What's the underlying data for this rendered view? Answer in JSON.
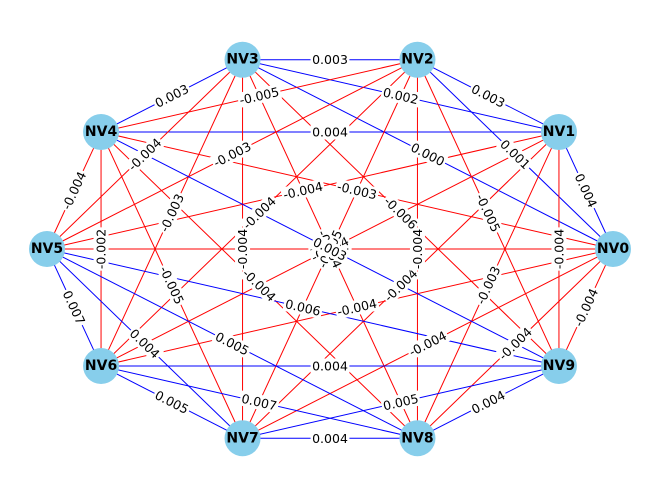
{
  "colors": {
    "node": "#87CEEB",
    "positive_edge": "#0000FF",
    "negative_edge": "#FF0000",
    "label_bg": "#FFFFFF"
  },
  "nodes": [
    "NV0",
    "NV1",
    "NV2",
    "NV3",
    "NV4",
    "NV5",
    "NV6",
    "NV7",
    "NV8",
    "NV9"
  ],
  "edges": [
    {
      "source": "NV0",
      "target": "NV1",
      "weight": 0.004,
      "label": "0.004"
    },
    {
      "source": "NV0",
      "target": "NV2",
      "weight": 0.001,
      "label": "0.001"
    },
    {
      "source": "NV0",
      "target": "NV3",
      "weight": 0.0,
      "label": "0.000"
    },
    {
      "source": "NV0",
      "target": "NV4",
      "weight": -0.003,
      "label": "-0.003"
    },
    {
      "source": "NV0",
      "target": "NV5",
      "weight": -0.004,
      "label": "-0.004"
    },
    {
      "source": "NV0",
      "target": "NV6",
      "weight": -0.004,
      "label": "-0.004"
    },
    {
      "source": "NV0",
      "target": "NV7",
      "weight": -0.004,
      "label": "-0.004"
    },
    {
      "source": "NV0",
      "target": "NV8",
      "weight": -0.004,
      "label": "-0.004"
    },
    {
      "source": "NV0",
      "target": "NV9",
      "weight": -0.004,
      "label": "-0.004"
    },
    {
      "source": "NV1",
      "target": "NV2",
      "weight": 0.003,
      "label": "0.003"
    },
    {
      "source": "NV1",
      "target": "NV3",
      "weight": 0.002,
      "label": "0.002"
    },
    {
      "source": "NV1",
      "target": "NV4",
      "weight": 0.004,
      "label": "0.004"
    },
    {
      "source": "NV1",
      "target": "NV5",
      "weight": -0.004,
      "label": "-0.004"
    },
    {
      "source": "NV1",
      "target": "NV6",
      "weight": -0.004,
      "label": "-0.004"
    },
    {
      "source": "NV1",
      "target": "NV7",
      "weight": -0.004,
      "label": "-0.004"
    },
    {
      "source": "NV1",
      "target": "NV8",
      "weight": -0.003,
      "label": "-0.003"
    },
    {
      "source": "NV1",
      "target": "NV9",
      "weight": -0.004,
      "label": "-0.004"
    },
    {
      "source": "NV2",
      "target": "NV3",
      "weight": 0.003,
      "label": "0.003"
    },
    {
      "source": "NV2",
      "target": "NV4",
      "weight": -0.005,
      "label": "-0.005"
    },
    {
      "source": "NV2",
      "target": "NV5",
      "weight": -0.003,
      "label": "-0.003"
    },
    {
      "source": "NV2",
      "target": "NV6",
      "weight": -0.004,
      "label": "-0.004"
    },
    {
      "source": "NV2",
      "target": "NV7",
      "weight": -0.005,
      "label": "-0.005"
    },
    {
      "source": "NV2",
      "target": "NV8",
      "weight": -0.004,
      "label": "-0.004"
    },
    {
      "source": "NV2",
      "target": "NV9",
      "weight": -0.005,
      "label": "-0.005"
    },
    {
      "source": "NV3",
      "target": "NV4",
      "weight": 0.003,
      "label": "0.003"
    },
    {
      "source": "NV3",
      "target": "NV5",
      "weight": -0.004,
      "label": "-0.004"
    },
    {
      "source": "NV3",
      "target": "NV6",
      "weight": -0.003,
      "label": "-0.003"
    },
    {
      "source": "NV3",
      "target": "NV7",
      "weight": -0.004,
      "label": "-0.004"
    },
    {
      "source": "NV3",
      "target": "NV8",
      "weight": -0.004,
      "label": "-0.004"
    },
    {
      "source": "NV3",
      "target": "NV9",
      "weight": -0.006,
      "label": "-0.006"
    },
    {
      "source": "NV4",
      "target": "NV5",
      "weight": -0.004,
      "label": "-0.004"
    },
    {
      "source": "NV4",
      "target": "NV6",
      "weight": -0.002,
      "label": "-0.002"
    },
    {
      "source": "NV4",
      "target": "NV7",
      "weight": -0.005,
      "label": "-0.005"
    },
    {
      "source": "NV4",
      "target": "NV8",
      "weight": -0.004,
      "label": "-0.004"
    },
    {
      "source": "NV4",
      "target": "NV9",
      "weight": 0.003,
      "label": "0.003"
    },
    {
      "source": "NV5",
      "target": "NV6",
      "weight": 0.007,
      "label": "0.007"
    },
    {
      "source": "NV5",
      "target": "NV7",
      "weight": 0.004,
      "label": "0.004"
    },
    {
      "source": "NV5",
      "target": "NV8",
      "weight": 0.005,
      "label": "0.005"
    },
    {
      "source": "NV5",
      "target": "NV9",
      "weight": 0.006,
      "label": "0.006"
    },
    {
      "source": "NV6",
      "target": "NV7",
      "weight": 0.005,
      "label": "0.005"
    },
    {
      "source": "NV6",
      "target": "NV8",
      "weight": 0.007,
      "label": "0.007"
    },
    {
      "source": "NV6",
      "target": "NV9",
      "weight": 0.004,
      "label": "0.004"
    },
    {
      "source": "NV7",
      "target": "NV8",
      "weight": 0.004,
      "label": "0.004"
    },
    {
      "source": "NV7",
      "target": "NV9",
      "weight": 0.005,
      "label": "0.005"
    },
    {
      "source": "NV8",
      "target": "NV9",
      "weight": 0.004,
      "label": "0.004"
    }
  ]
}
